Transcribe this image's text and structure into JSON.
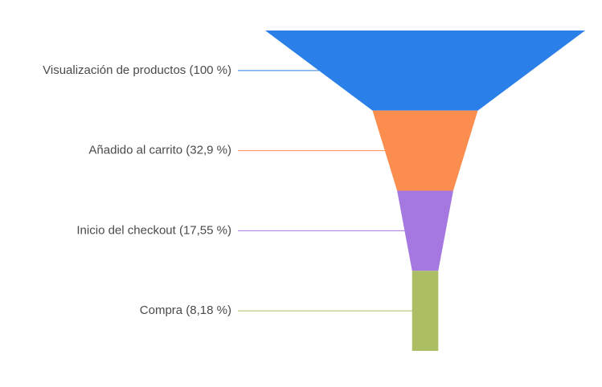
{
  "chart_data": {
    "type": "funnel",
    "stages": [
      {
        "label": "Visualización de productos (100 %)",
        "value": 100,
        "color": "#2b7fe8"
      },
      {
        "label": "Añadido al carrito (32,9 %)",
        "value": 32.9,
        "color": "#fb8d4f"
      },
      {
        "label": "Inicio del checkout (17,55 %)",
        "value": 17.55,
        "color": "#a478e0"
      },
      {
        "label": "Compra (8,18 %)",
        "value": 8.18,
        "color": "#abbe64"
      }
    ]
  }
}
